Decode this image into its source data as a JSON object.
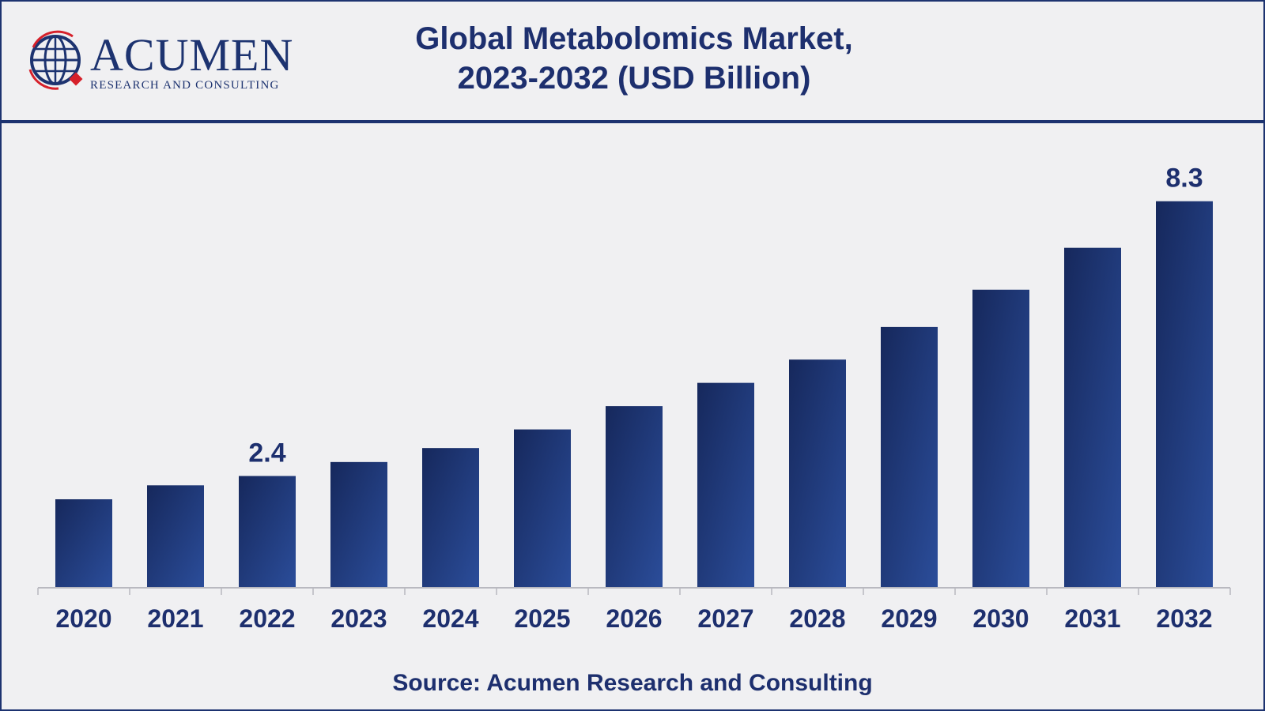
{
  "header": {
    "title_line1": "Global Metabolomics Market,",
    "title_line2": "2023-2032 (USD Billion)",
    "logo_word": "ACUMEN",
    "logo_sub": "RESEARCH AND CONSULTING",
    "logo_icon": "globe-icon"
  },
  "footer": {
    "source": "Source: Acumen Research and Consulting"
  },
  "colors": {
    "bar_dark": "#16285c",
    "bar_light": "#2b4d9a",
    "text": "#1d2f6e",
    "border": "#1d3370",
    "logo_red": "#d6202a"
  },
  "chart_data": {
    "type": "bar",
    "title": "Global Metabolomics Market, 2023-2032 (USD Billion)",
    "categories": [
      "2020",
      "2021",
      "2022",
      "2023",
      "2024",
      "2025",
      "2026",
      "2027",
      "2028",
      "2029",
      "2030",
      "2031",
      "2032"
    ],
    "values": [
      1.9,
      2.2,
      2.4,
      2.7,
      3.0,
      3.4,
      3.9,
      4.4,
      4.9,
      5.6,
      6.4,
      7.3,
      8.3
    ],
    "data_labels": [
      {
        "category": "2022",
        "text": "2.4"
      },
      {
        "category": "2032",
        "text": "8.3"
      }
    ],
    "xlabel": "",
    "ylabel": "",
    "ylim": [
      0,
      9.5
    ],
    "grid": false,
    "legend": "none"
  }
}
